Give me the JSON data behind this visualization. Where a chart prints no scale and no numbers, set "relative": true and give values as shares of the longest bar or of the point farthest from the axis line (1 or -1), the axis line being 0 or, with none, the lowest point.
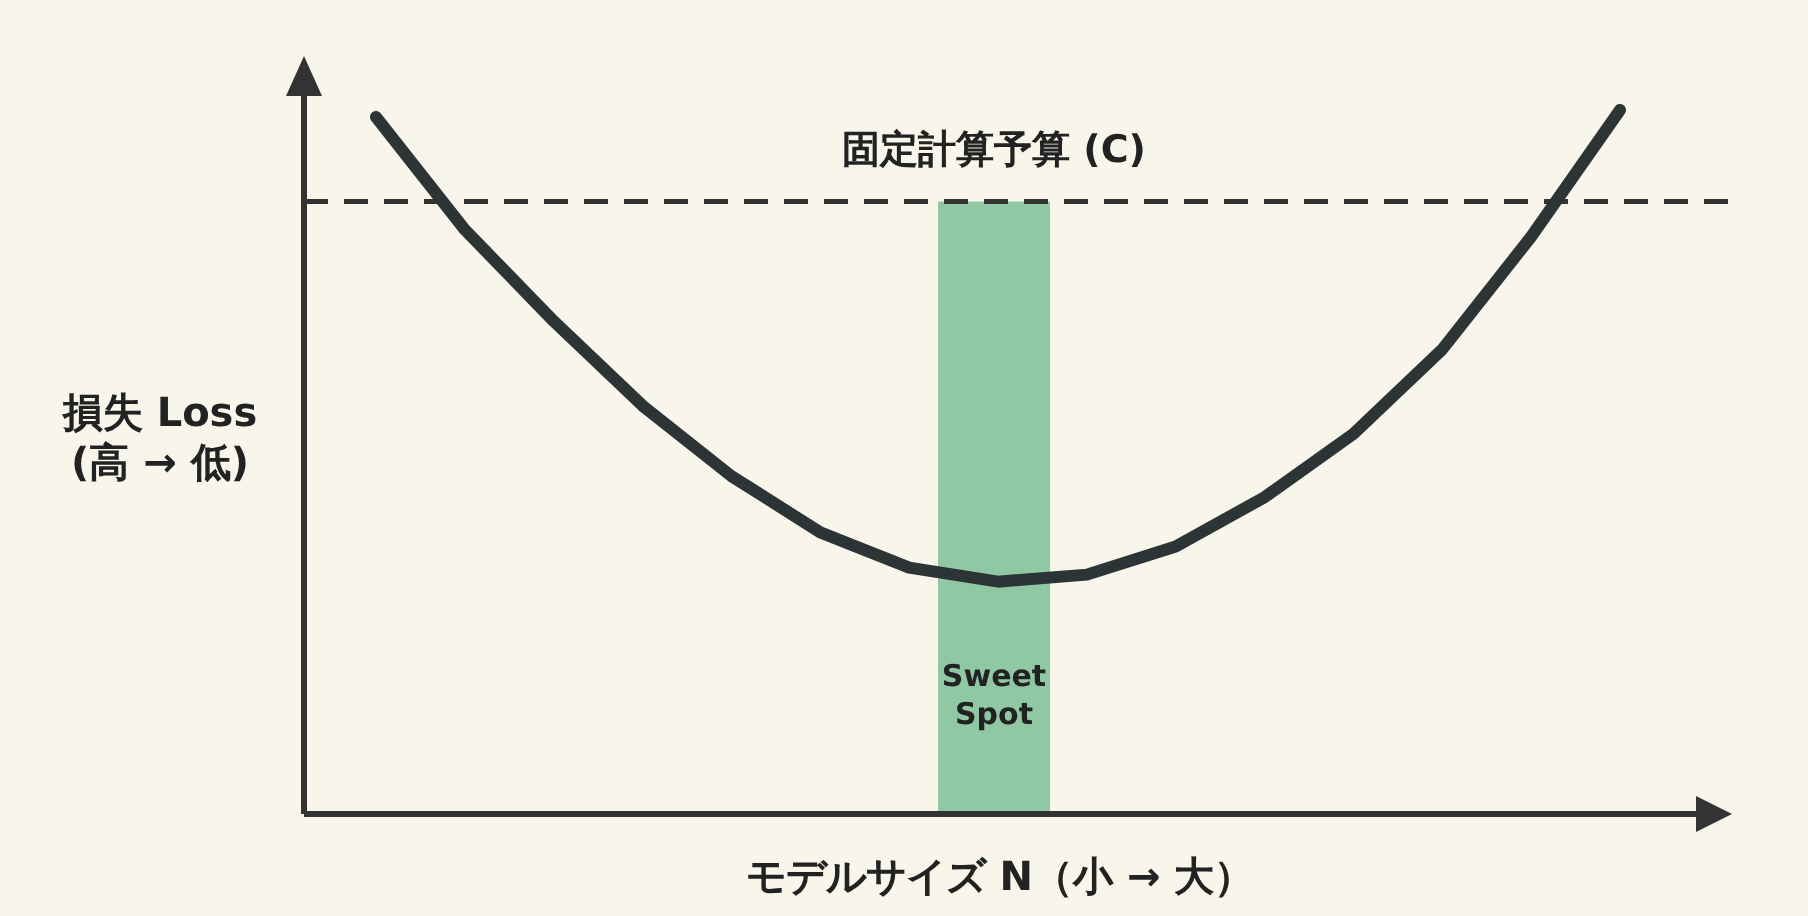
{
  "chart_data": {
    "type": "line",
    "relative": true,
    "xlabel": "モデルサイズ N（小 → 大）",
    "ylabel": "損失 Loss\n(高 → 低)",
    "categories": [
      null,
      null,
      null,
      null,
      null,
      null,
      null,
      null,
      null,
      null,
      null,
      null,
      null,
      null,
      null
    ],
    "series": [
      {
        "color": "#2d3436",
        "values": [
          0.99,
          0.83,
          0.7,
          0.58,
          0.48,
          0.4,
          0.35,
          0.33,
          0.34,
          0.38,
          0.45,
          0.54,
          0.66,
          0.82,
          1.0
        ]
      }
    ],
    "ref_lines": [
      {
        "axis": "y",
        "value": 0.87,
        "label": "固定計算予算 (C)",
        "color": "#333333",
        "line_style": "dashed"
      }
    ],
    "annotations": [
      "Sweet\nSpot"
    ]
  }
}
